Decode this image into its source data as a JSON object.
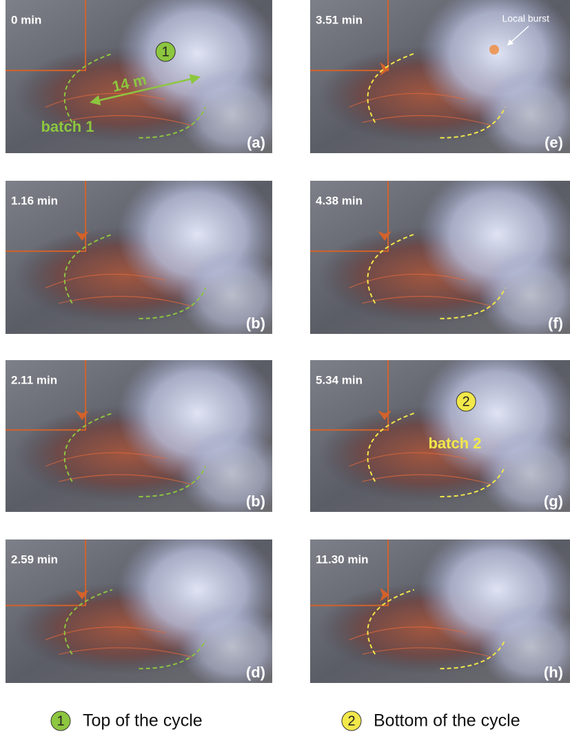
{
  "panels": [
    {
      "time": "0 min",
      "label": "(a)",
      "marker": "1",
      "scale": "14 m",
      "batch": "batch 1"
    },
    {
      "time": "1.16 min",
      "label": "(b)"
    },
    {
      "time": "2.11 min",
      "label": "(b)"
    },
    {
      "time": "2.59 min",
      "label": "(d)"
    },
    {
      "time": "3.51 min",
      "label": "(e)",
      "note": "Local burst"
    },
    {
      "time": "4.38 min",
      "label": "(f)"
    },
    {
      "time": "5.34 min",
      "label": "(g)",
      "marker": "2",
      "batch": "batch 2"
    },
    {
      "time": "11.30 min",
      "label": "(h)"
    }
  ],
  "legend": [
    {
      "marker": "1",
      "text": "Top of the cycle"
    },
    {
      "marker": "2",
      "text": "Bottom of the cycle"
    }
  ]
}
